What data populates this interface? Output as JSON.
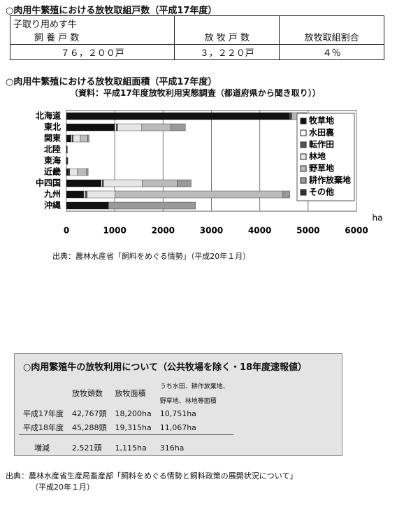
{
  "section1": {
    "title": "○肉用牛繁殖における放牧取組戸数（平成17年度）",
    "header": [
      [
        "子取り用めす牛",
        "飼 養 戸 数"
      ],
      "放 牧 戸 数",
      "放牧取組割合"
    ],
    "row": [
      "７６，２００戸",
      "３，２２０戸",
      "４％"
    ]
  },
  "chart_data": {
    "type": "bar",
    "orientation": "horizontal",
    "stacked": true,
    "title": "○肉用牛繁殖における放牧取組面積（平成17年度）",
    "subtitle": "（資料：平成17年度放牧利用実態調査（都道府県から聞き取り））",
    "x_label": "ha",
    "categories": [
      "北海道",
      "東北",
      "関東",
      "北陸",
      "東海",
      "近畿",
      "中四国",
      "九州",
      "沖縄"
    ],
    "series": [
      {
        "name": "牧草地",
        "color": "#111111",
        "values": [
          4620,
          1000,
          100,
          10,
          20,
          50,
          720,
          360,
          870
        ]
      },
      {
        "name": "水田裏",
        "color": "#ffffff",
        "values": [
          10,
          30,
          20,
          5,
          5,
          10,
          20,
          30,
          0
        ]
      },
      {
        "name": "転作田",
        "color": "#555555",
        "values": [
          40,
          30,
          20,
          0,
          0,
          10,
          30,
          40,
          0
        ]
      },
      {
        "name": "林地",
        "color": "#e6e6e6",
        "values": [
          30,
          500,
          150,
          0,
          0,
          150,
          800,
          580,
          0
        ]
      },
      {
        "name": "野草地",
        "color": "#bbbbbb",
        "values": [
          100,
          600,
          150,
          5,
          5,
          200,
          720,
          3470,
          0
        ]
      },
      {
        "name": "耕作放棄地",
        "color": "#999999",
        "values": [
          70,
          300,
          30,
          0,
          0,
          30,
          290,
          140,
          1800
        ]
      },
      {
        "name": "その他",
        "color": "#333333",
        "values": [
          100,
          0,
          0,
          0,
          0,
          0,
          0,
          0,
          0
        ]
      }
    ],
    "xlim": [
      0,
      6000
    ],
    "xticks": [
      0,
      1000,
      2000,
      3000,
      4000,
      5000,
      6000
    ],
    "grid": true
  },
  "source1": "出典：農林水産省「飼料をめぐる情勢」（平成20年１月）",
  "table2": {
    "title": "○肉用繁殖牛の放牧利用について（公共牧場を除く・18年度速報値）",
    "header": [
      "放牧頭数",
      "放牧面積",
      [
        "うち水田、耕作放棄地、",
        "野草地、林地等面積"
      ]
    ],
    "rows": [
      [
        "平成17年度",
        "42,767頭",
        "18,200ha",
        "10,751ha"
      ],
      [
        "平成18年度",
        "45,288頭",
        "19,315ha",
        "11,067ha"
      ],
      [
        "増減",
        "2,521頭",
        "1,115ha",
        "316ha"
      ]
    ]
  },
  "source2": [
    "出典：農林水産省生産局畜産部「飼料をめぐる情勢と飼料政策の展開状況について」",
    "（平成20年１月）"
  ]
}
